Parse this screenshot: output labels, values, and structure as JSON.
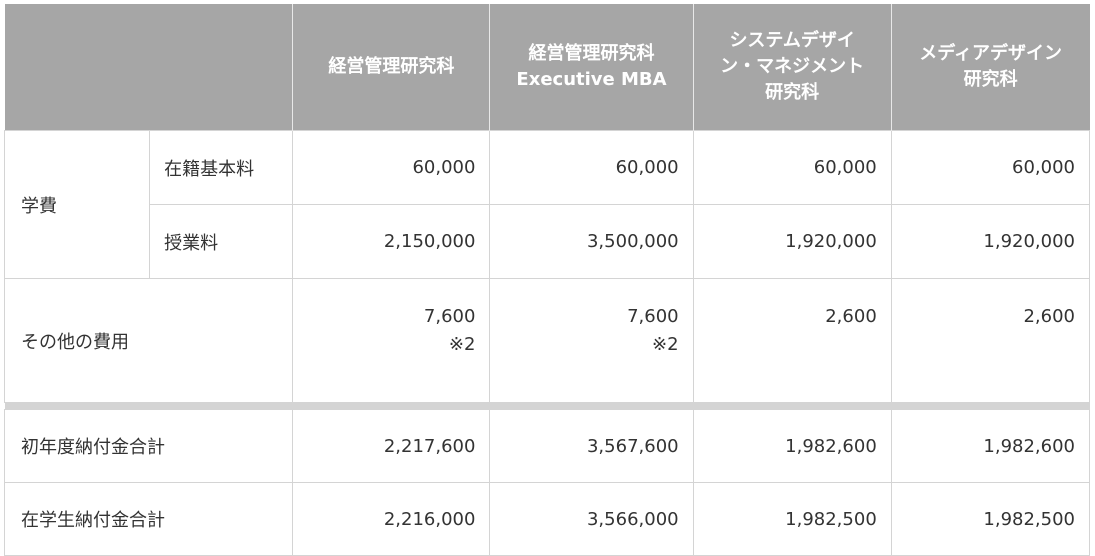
{
  "header": {
    "col1": "経営管理研究科",
    "col2_line1": "経営管理研究科",
    "col2_line2": "Executive MBA",
    "col3_line1": "システムデザイ",
    "col3_line2": "ン・マネジメント",
    "col3_line3": "研究科",
    "col4_line1": "メディアデザイン",
    "col4_line2": "研究科"
  },
  "rows": {
    "tuition_group_label": "学費",
    "enrollment_fee": {
      "label": "在籍基本料",
      "values": [
        "60,000",
        "60,000",
        "60,000",
        "60,000"
      ]
    },
    "tuition": {
      "label": "授業料",
      "values": [
        "2,150,000",
        "3,500,000",
        "1,920,000",
        "1,920,000"
      ]
    },
    "other_fees": {
      "label": "その他の費用",
      "values": [
        "7,600",
        "7,600",
        "2,600",
        "2,600"
      ],
      "notes": [
        "※2",
        "※2",
        "",
        ""
      ]
    },
    "first_year_total": {
      "label": "初年度納付金合計",
      "values": [
        "2,217,600",
        "3,567,600",
        "1,982,600",
        "1,982,600"
      ]
    },
    "enrolled_total": {
      "label": "在学生納付金合計",
      "values": [
        "2,216,000",
        "3,566,000",
        "1,982,500",
        "1,982,500"
      ]
    }
  },
  "colors": {
    "header_bg": "#a6a6a6",
    "header_text": "#ffffff",
    "border": "#d4d4d4",
    "text": "#333333"
  }
}
